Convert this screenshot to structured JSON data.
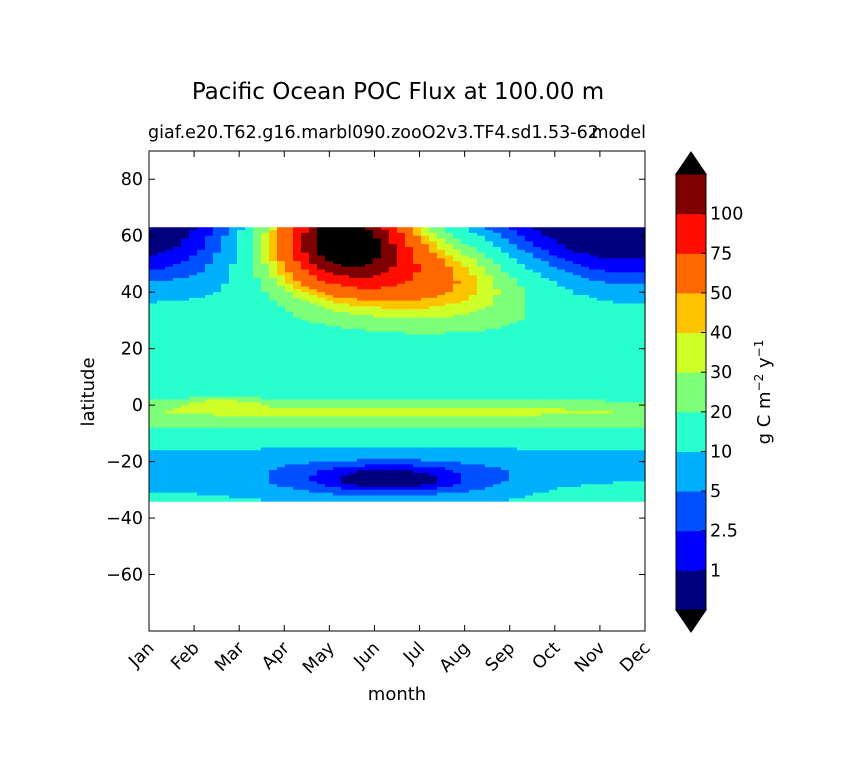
{
  "chart_data": {
    "type": "heatmap",
    "title": "Pacific Ocean POC Flux at 100.00 m",
    "subtitle_left": "giaf.e20.T62.g16.marbl090.zooO2v3.TF4.sd1.53-62",
    "subtitle_right": "model",
    "xlabel": "month",
    "ylabel": "latitude",
    "x_categories": [
      "Jan",
      "Feb",
      "Mar",
      "Apr",
      "May",
      "Jun",
      "Jul",
      "Aug",
      "Sep",
      "Oct",
      "Nov",
      "Dec"
    ],
    "xlim": [
      0,
      11
    ],
    "ylim": [
      -80,
      90
    ],
    "yticks": [
      80,
      60,
      40,
      20,
      0,
      -20,
      -40,
      -60
    ],
    "ytick_labels": [
      "80",
      "60",
      "40",
      "20",
      "0",
      "−20",
      "−40",
      "−60"
    ],
    "data_lat_range": [
      -34,
      63
    ],
    "colorbar": {
      "label": "g C m−2 y−1",
      "label_main": "g C m",
      "label_exp1": "−2",
      "label_mid": " y",
      "label_exp2": "−1",
      "extend": "both",
      "levels": [
        0,
        1,
        2.5,
        5,
        10,
        20,
        30,
        40,
        50,
        75,
        100,
        125
      ],
      "tick_labels": [
        "1",
        "2.5",
        "5",
        "10",
        "20",
        "30",
        "40",
        "50",
        "75",
        "100"
      ],
      "tick_values": [
        1,
        2.5,
        5,
        10,
        20,
        30,
        40,
        50,
        75,
        100
      ],
      "colors": [
        "#00007f",
        "#0000ff",
        "#0050ff",
        "#00b0ff",
        "#29ffce",
        "#7dff7a",
        "#ceff29",
        "#ffc400",
        "#ff6800",
        "#ff0d00",
        "#7f0000"
      ],
      "under_color": "#000000",
      "over_color": "#000000"
    },
    "field_description": {
      "Jan": [
        0.4,
        0.9,
        3,
        8,
        15,
        15,
        12,
        16,
        27,
        26,
        16,
        10,
        8,
        9,
        12
      ],
      "lat_nodes": [
        63,
        55,
        48,
        40,
        30,
        20,
        10,
        2,
        -2,
        -6,
        -10,
        -16,
        -22,
        -28,
        -34
      ]
    }
  }
}
